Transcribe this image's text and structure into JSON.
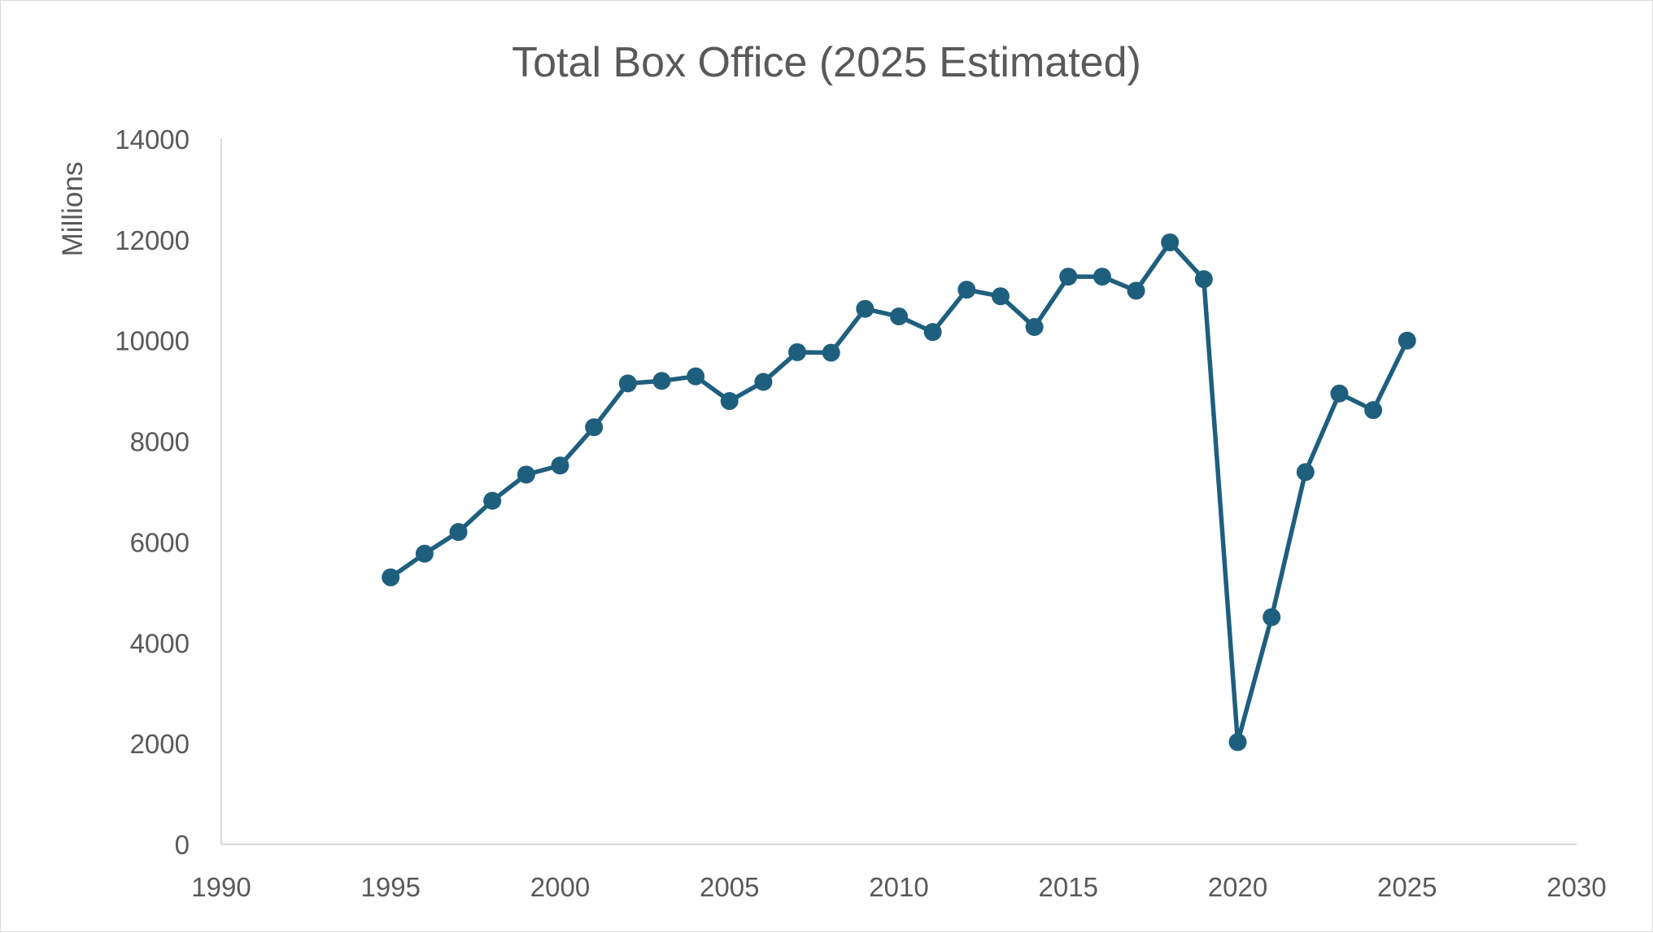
{
  "chart_data": {
    "type": "scatter",
    "title": "Total Box Office (2025 Estimated)",
    "xlabel": "",
    "ylabel": "Millions",
    "xlim": [
      1990,
      2030
    ],
    "ylim": [
      0,
      14000
    ],
    "x_ticks": [
      1990,
      1995,
      2000,
      2005,
      2010,
      2015,
      2020,
      2025,
      2030
    ],
    "y_ticks": [
      0,
      2000,
      4000,
      6000,
      8000,
      10000,
      12000,
      14000
    ],
    "grid": false,
    "legend": "none",
    "color": "#1f5f7e",
    "series": [
      {
        "x": [
          1995,
          1996,
          1997,
          1998,
          1999,
          2000,
          2001,
          2002,
          2003,
          2004,
          2005,
          2006,
          2007,
          2008,
          2009,
          2010,
          2011,
          2012,
          2013,
          2014,
          2015,
          2016,
          2017,
          2018,
          2019,
          2020,
          2021,
          2022,
          2023,
          2024,
          2025
        ],
        "values": [
          5300,
          5770,
          6200,
          6820,
          7340,
          7520,
          8280,
          9150,
          9200,
          9290,
          8800,
          9180,
          9770,
          9760,
          10630,
          10480,
          10170,
          11010,
          10880,
          10270,
          11270,
          11270,
          10990,
          11950,
          11220,
          2030,
          4510,
          7390,
          8950,
          8620,
          10000
        ]
      }
    ]
  }
}
